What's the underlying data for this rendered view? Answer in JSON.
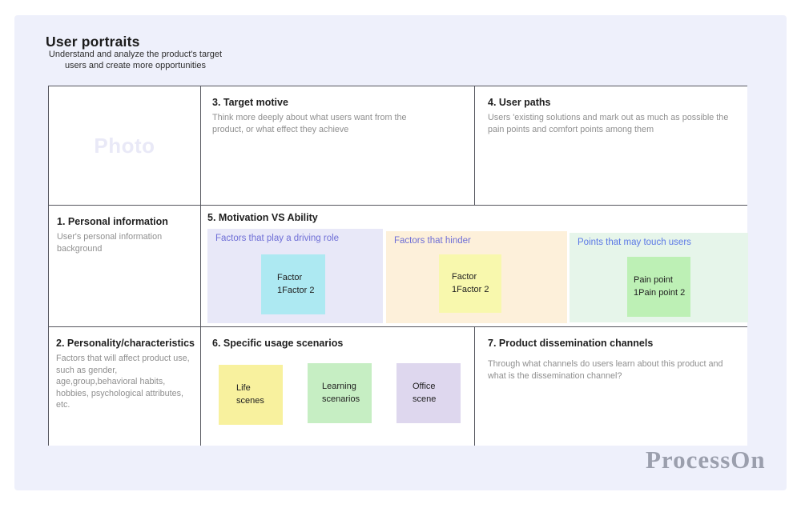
{
  "page": {
    "title": "User portraits",
    "subtitle_line1": "Understand and analyze the product's target",
    "subtitle_line2": "users and create more opportunities",
    "watermark": "ProcessOn"
  },
  "photo": {
    "placeholder": "Photo"
  },
  "cells": {
    "personal_info": {
      "heading": "1. Personal information",
      "body": "User's personal information background"
    },
    "personality": {
      "heading": "2. Personality/characteristics",
      "body": "Factors that will affect product use, such as gender, age,group,behavioral habits, hobbies, psychological attributes, etc."
    },
    "target_motive": {
      "heading": "3. Target motive",
      "body": "Think more deeply about what users want from the product, or what effect they achieve"
    },
    "user_paths": {
      "heading": "4. User paths",
      "body": "Users 'existing solutions and mark out as much as possible the pain points and comfort points among them"
    },
    "motivation": {
      "heading": "5. Motivation VS Ability",
      "panels": [
        {
          "label": "Factors that play a driving role",
          "note": "Factor 1Factor 2",
          "panel_color": "#e8e8f8",
          "note_color": "#ade9f2"
        },
        {
          "label": "Factors that hinder",
          "note": "Factor 1Factor 2",
          "panel_color": "#fdf0da",
          "note_color": "#f8f8ad"
        },
        {
          "label": "Points that may touch users",
          "note": "Pain point 1Pain point 2",
          "panel_color": "#e6f5ea",
          "note_color": "#bdf0b5"
        }
      ]
    },
    "usage_scenarios": {
      "heading": "6. Specific usage scenarios",
      "notes": [
        {
          "text": "Life scenes",
          "color": "#f8f19e"
        },
        {
          "text": "Learning scenarios",
          "color": "#c6eec3"
        },
        {
          "text": "Office scene",
          "color": "#ded7ee"
        }
      ]
    },
    "dissemination": {
      "heading": "7. Product dissemination channels",
      "body": "Through what channels do users learn about this product and what is the dissemination channel?"
    }
  },
  "colors": {
    "canvas_background": "#eef0fb",
    "cell_background": "#ffffff",
    "grid_border": "#55565e",
    "label_purple": "#6e6ed6",
    "label_blue": "#5b78e6",
    "body_text": "#8f8f8f",
    "watermark_gray": "#9b9fad",
    "photo_placeholder": "#e9e9f7"
  }
}
